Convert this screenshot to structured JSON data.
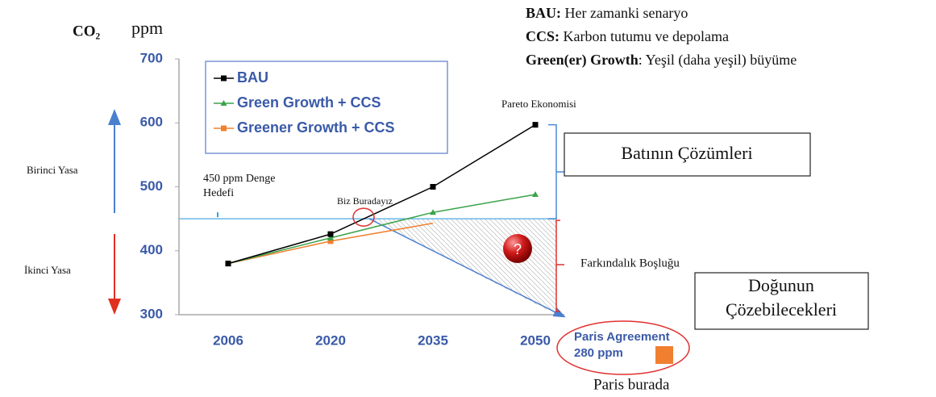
{
  "chart_data": {
    "type": "line",
    "y_unit_label": "ppm",
    "y_quantity_label": "CO₂",
    "categories": [
      "2006",
      "2020",
      "2035",
      "2050"
    ],
    "series": [
      {
        "name": "BAU",
        "color": "#000000",
        "marker": "square",
        "values": [
          380,
          426,
          500,
          597
        ]
      },
      {
        "name": "Green Growth + CCS",
        "color": "#3aa34a",
        "marker": "triangle",
        "values": [
          380,
          420,
          460,
          488
        ]
      },
      {
        "name": "Greener Growth + CCS",
        "color": "#f08030",
        "marker": "square",
        "values": [
          380,
          415,
          443,
          null
        ]
      }
    ],
    "ylim": [
      300,
      700
    ],
    "yticks": [
      300,
      400,
      500,
      600,
      700
    ],
    "reference_line": 450,
    "definitions": [
      {
        "term": "BAU:",
        "text": "Her zamanki senaryo"
      },
      {
        "term": "CCS:",
        "text": "Karbon tutumu ve depolama"
      },
      {
        "term": "Green(er) Growth",
        "text": ": Yeşil (daha yeşil) büyüme"
      }
    ],
    "annotations": {
      "pareto": "Pareto Ekonomisi",
      "west": "Batının Çözümleri",
      "first_law": "Birinci Yasa",
      "target": [
        "450 ppm Denge",
        "Hedefi"
      ],
      "here": "Biz Buradayız",
      "question": "?",
      "gap": "Farkındalık Boşluğu",
      "second_law": "İkinci Yasa",
      "east": [
        "Doğunun",
        "Çözebilecekleri"
      ],
      "paris": [
        "Paris Agreement",
        "280 ppm"
      ],
      "paris_here": "Paris burada"
    }
  }
}
